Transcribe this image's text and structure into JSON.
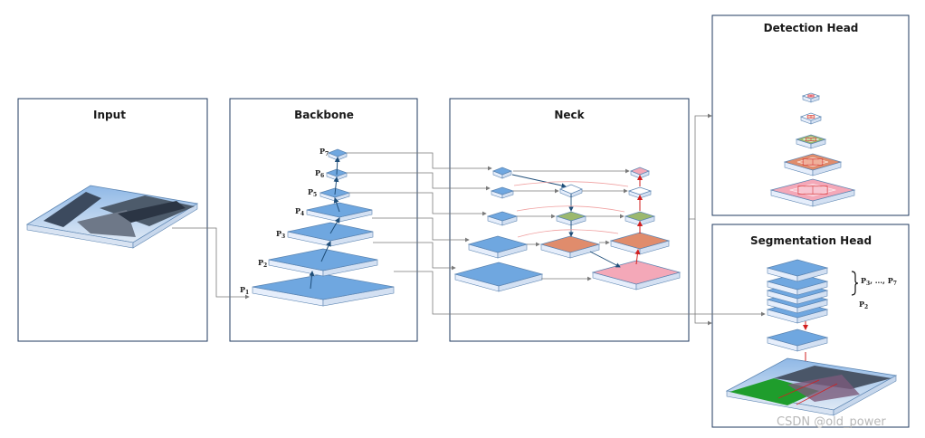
{
  "panels": {
    "input": "Input",
    "backbone": "Backbone",
    "neck": "Neck",
    "detection": "Detection Head",
    "segmentation": "Segmentation Head"
  },
  "backbone_levels": [
    {
      "label": "P",
      "sub": "1"
    },
    {
      "label": "P",
      "sub": "2"
    },
    {
      "label": "P",
      "sub": "3"
    },
    {
      "label": "P",
      "sub": "4"
    },
    {
      "label": "P",
      "sub": "5"
    },
    {
      "label": "P",
      "sub": "6"
    },
    {
      "label": "P",
      "sub": "7"
    }
  ],
  "seg_brace_label": {
    "p": "P",
    "sub_start": "3",
    "mid": ", ..., ",
    "p2": "P",
    "sub_end": "7"
  },
  "seg_p2_label": {
    "p": "P",
    "sub": "2"
  },
  "watermark": "CSDN @old_power",
  "colors": {
    "layer_blue": "#6fa7e0",
    "layer_side": "#e6eefb",
    "green": "#9bb86e",
    "orange": "#e08c6c",
    "pink": "#f4a8b8",
    "panel_border": "#1f3a5f",
    "connector": "#7a7a7a",
    "red_arrow": "#d22020",
    "dark_arrow": "#1f4e79"
  }
}
